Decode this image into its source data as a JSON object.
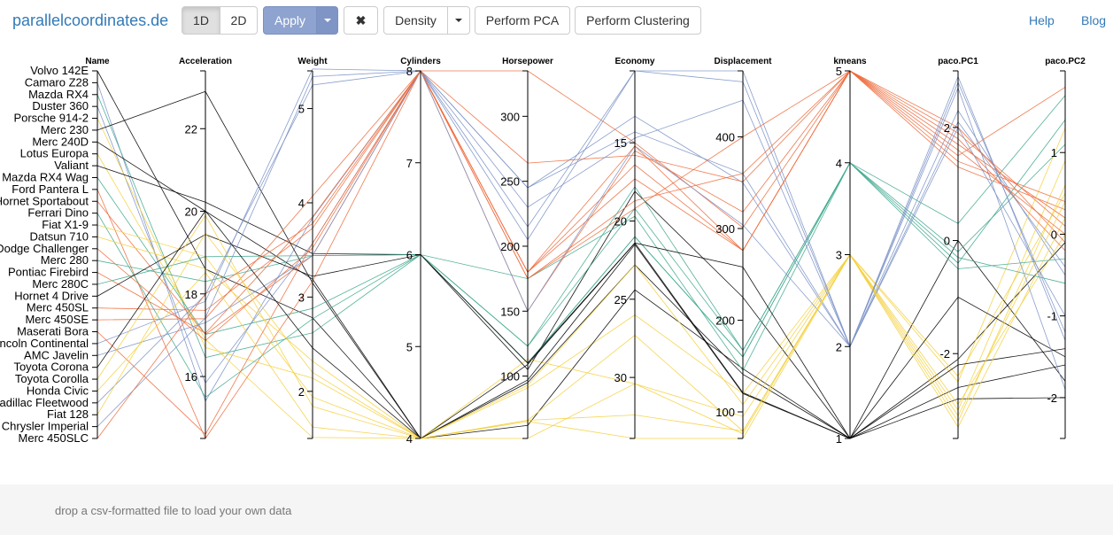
{
  "brand": "parallelcoordinates.de",
  "toolbar": {
    "btn_1d": "1D",
    "btn_2d": "2D",
    "apply": "Apply",
    "clear_icon": "✖",
    "density": "Density",
    "pca": "Perform PCA",
    "clustering": "Perform Clustering"
  },
  "nav": {
    "help": "Help",
    "blog": "Blog"
  },
  "footer": {
    "text": "drop a csv-formatted file to load your own data"
  },
  "colors": {
    "kmeans1": "#000000",
    "kmeans2": "#7b92c7",
    "kmeans3": "#f4d03f",
    "kmeans4": "#3fa98e",
    "kmeans5": "#ee6a3b"
  },
  "chart_data": {
    "type": "parallel-coordinates",
    "axes": [
      {
        "name": "Name",
        "type": "categorical"
      },
      {
        "name": "Acceleration",
        "domain": [
          14.5,
          23.4
        ],
        "ticks": [
          16,
          18,
          20,
          22
        ]
      },
      {
        "name": "Weight",
        "domain": [
          1.5,
          5.4
        ],
        "ticks": [
          2,
          3,
          4,
          5
        ]
      },
      {
        "name": "Cylinders",
        "domain": [
          4,
          8
        ],
        "ticks": [
          4,
          5,
          6,
          7,
          8
        ]
      },
      {
        "name": "Horsepower",
        "domain": [
          52,
          335
        ],
        "ticks": [
          100,
          150,
          200,
          250,
          300
        ]
      },
      {
        "name": "Economy",
        "domain": [
          10.4,
          33.9
        ],
        "reversed": true,
        "ticks": [
          15,
          20,
          25,
          30
        ]
      },
      {
        "name": "Displacement",
        "domain": [
          71,
          472
        ],
        "ticks": [
          100,
          200,
          300,
          400
        ]
      },
      {
        "name": "kmeans",
        "domain": [
          1,
          5
        ],
        "ticks": [
          1,
          2,
          3,
          4,
          5
        ]
      },
      {
        "name": "paco.PC1",
        "domain": [
          -3.5,
          3.0
        ],
        "ticks": [
          -2,
          0,
          2
        ]
      },
      {
        "name": "paco.PC2",
        "domain": [
          -2.5,
          2.0
        ],
        "ticks": [
          -2,
          -1,
          0,
          1
        ]
      }
    ],
    "names": [
      "Volvo 142E",
      "Camaro Z28",
      "Mazda RX4",
      "Duster 360",
      "Porsche 914-2",
      "Merc 230",
      "Merc 240D",
      "Lotus Europa",
      "Valiant",
      "Mazda RX4 Wag",
      "Ford Pantera L",
      "Hornet Sportabout",
      "Ferrari Dino",
      "Fiat X1-9",
      "Datsun 710",
      "Dodge Challenger",
      "Merc 280",
      "Pontiac Firebird",
      "Merc 280C",
      "Hornet 4 Drive",
      "Merc 450SL",
      "Merc 450SE",
      "Maserati Bora",
      "Lincoln Continental",
      "AMC Javelin",
      "Toyota Corona",
      "Toyota Corolla",
      "Honda Civic",
      "Cadillac Fleetwood",
      "Fiat 128",
      "Chrysler Imperial",
      "Merc 450SLC"
    ],
    "rows": [
      {
        "name": "Volvo 142E",
        "values": [
          18.6,
          2.78,
          4,
          109,
          21.4,
          121,
          1,
          -2.1,
          -0.1
        ]
      },
      {
        "name": "Camaro Z28",
        "values": [
          15.4,
          3.84,
          8,
          245,
          13.3,
          350,
          2,
          2.3,
          -0.5
        ]
      },
      {
        "name": "Mazda RX4",
        "values": [
          16.46,
          2.62,
          6,
          110,
          21.0,
          160,
          4,
          -0.4,
          1.4
        ]
      },
      {
        "name": "Duster 360",
        "values": [
          15.84,
          3.57,
          8,
          245,
          14.3,
          360,
          2,
          2.1,
          -0.4
        ]
      },
      {
        "name": "Porsche 914-2",
        "values": [
          16.7,
          2.14,
          4,
          91,
          26.0,
          120,
          3,
          -2.5,
          1.3
        ]
      },
      {
        "name": "Merc 230",
        "values": [
          22.9,
          3.15,
          4,
          95,
          22.8,
          141,
          1,
          -2.6,
          -1.6
        ]
      },
      {
        "name": "Merc 240D",
        "values": [
          20.0,
          3.19,
          4,
          62,
          24.4,
          147,
          1,
          -2.8,
          -2.0
        ]
      },
      {
        "name": "Lotus Europa",
        "values": [
          16.9,
          1.51,
          4,
          113,
          30.4,
          95,
          3,
          -3.0,
          0.9
        ]
      },
      {
        "name": "Valiant",
        "values": [
          20.22,
          3.46,
          6,
          105,
          18.1,
          225,
          1,
          0.0,
          -1.8
        ]
      },
      {
        "name": "Mazda RX4 Wag",
        "values": [
          17.02,
          2.88,
          6,
          110,
          21.0,
          160,
          4,
          -0.2,
          1.1
        ]
      },
      {
        "name": "Ford Pantera L",
        "values": [
          14.5,
          3.17,
          8,
          264,
          15.8,
          351,
          5,
          1.5,
          1.8
        ]
      },
      {
        "name": "Hornet Sportabout",
        "values": [
          17.02,
          3.44,
          8,
          175,
          18.7,
          360,
          5,
          1.3,
          0.3
        ]
      },
      {
        "name": "Ferrari Dino",
        "values": [
          15.5,
          2.77,
          6,
          175,
          19.7,
          145,
          4,
          0.3,
          1.7
        ]
      },
      {
        "name": "Fiat X1-9",
        "values": [
          18.9,
          1.94,
          4,
          66,
          27.3,
          79,
          3,
          -2.9,
          0.0
        ]
      },
      {
        "name": "Datsun 710",
        "values": [
          18.61,
          2.32,
          4,
          93,
          22.8,
          108,
          3,
          -2.4,
          0.5
        ]
      },
      {
        "name": "Dodge Challenger",
        "values": [
          16.87,
          3.52,
          8,
          150,
          15.5,
          318,
          5,
          1.8,
          -0.2
        ]
      },
      {
        "name": "Merc 280",
        "values": [
          18.3,
          3.44,
          6,
          123,
          19.2,
          167,
          4,
          -0.5,
          -0.3
        ]
      },
      {
        "name": "Pontiac Firebird",
        "values": [
          17.05,
          3.85,
          8,
          175,
          19.2,
          400,
          5,
          1.4,
          0.4
        ]
      },
      {
        "name": "Merc 280C",
        "values": [
          18.9,
          3.44,
          6,
          123,
          17.8,
          167,
          4,
          -0.3,
          -0.6
        ]
      },
      {
        "name": "Hornet 4 Drive",
        "values": [
          19.44,
          3.22,
          6,
          110,
          21.4,
          258,
          1,
          -1.0,
          -1.5
        ]
      },
      {
        "name": "Merc 450SL",
        "values": [
          17.6,
          3.73,
          8,
          180,
          17.3,
          276,
          5,
          1.7,
          0.2
        ]
      },
      {
        "name": "Merc 450SE",
        "values": [
          17.4,
          4.07,
          8,
          180,
          16.4,
          276,
          5,
          1.9,
          0.1
        ]
      },
      {
        "name": "Maserati Bora",
        "values": [
          14.6,
          3.57,
          8,
          335,
          15.0,
          301,
          5,
          2.0,
          -0.1
        ]
      },
      {
        "name": "Lincoln Continental",
        "values": [
          17.82,
          5.42,
          8,
          215,
          10.4,
          460,
          2,
          2.8,
          -1.2
        ]
      },
      {
        "name": "AMC Javelin",
        "values": [
          17.3,
          3.44,
          8,
          150,
          15.2,
          304,
          2,
          2.0,
          -1.0
        ]
      },
      {
        "name": "Toyota Corona",
        "values": [
          20.01,
          2.46,
          4,
          97,
          21.5,
          120,
          1,
          -2.2,
          -1.4
        ]
      },
      {
        "name": "Toyota Corolla",
        "values": [
          19.9,
          1.84,
          4,
          65,
          33.9,
          71,
          3,
          -3.2,
          0.6
        ]
      },
      {
        "name": "Honda Civic",
        "values": [
          18.52,
          1.62,
          4,
          52,
          30.4,
          76,
          3,
          -3.3,
          0.2
        ]
      },
      {
        "name": "Cadillac Fleetwood",
        "values": [
          17.98,
          5.25,
          8,
          205,
          10.4,
          472,
          2,
          2.9,
          -1.3
        ]
      },
      {
        "name": "Fiat 128",
        "values": [
          19.47,
          2.2,
          4,
          66,
          32.4,
          79,
          3,
          -3.1,
          0.4
        ]
      },
      {
        "name": "Chrysler Imperial",
        "values": [
          17.42,
          5.34,
          8,
          230,
          14.7,
          440,
          2,
          2.7,
          -1.9
        ]
      },
      {
        "name": "Merc 450SLC",
        "values": [
          18.0,
          3.78,
          8,
          180,
          15.2,
          276,
          5,
          1.6,
          0.0
        ]
      }
    ]
  }
}
